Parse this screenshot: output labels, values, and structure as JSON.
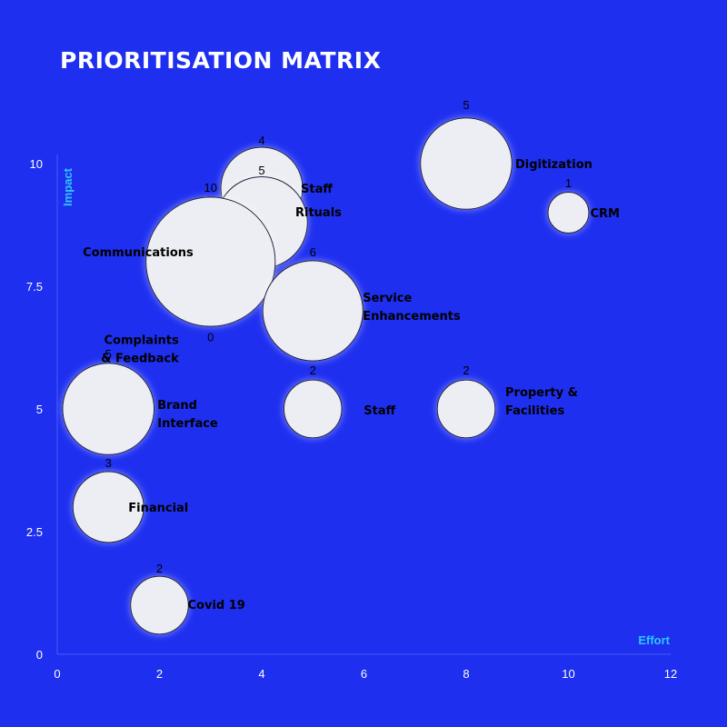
{
  "page": {
    "title": "PRIORITISATION MATRIX",
    "background": "#1e2ff0"
  },
  "chart_data": {
    "type": "scatter",
    "title": "PRIORITISATION MATRIX",
    "xlabel": "Effort",
    "ylabel": "Impact",
    "xlim": [
      0,
      12
    ],
    "ylim": [
      0,
      10
    ],
    "x_ticks": [
      0,
      2,
      4,
      6,
      8,
      10,
      12
    ],
    "y_ticks": [
      {
        "value": 0,
        "label": "0"
      },
      {
        "value": 2.5,
        "label": "2.5"
      },
      {
        "value": 5,
        "label": "5"
      },
      {
        "value": 7.5,
        "label": "7.5"
      },
      {
        "value": 10,
        "label": "10"
      }
    ],
    "grid": false,
    "colors": {
      "bubble_fill": "#eceef4",
      "bubble_stroke": "#1a1a3a",
      "axis_title": "#2ec6ff",
      "tick_label": "#ffffff"
    },
    "points": [
      {
        "name": "Digitization",
        "x": 8,
        "y": 10,
        "size": 5
      },
      {
        "name": "CRM",
        "x": 10,
        "y": 9,
        "size": 1
      },
      {
        "name": "Staff",
        "x": 4,
        "y": 9.5,
        "size": 4
      },
      {
        "name": "Rituals",
        "x": 4,
        "y": 8.8,
        "size": 5
      },
      {
        "name": "Communications",
        "x": 3,
        "y": 8,
        "size": 10
      },
      {
        "name": "Service Enhancements",
        "x": 5,
        "y": 7,
        "size": 6
      },
      {
        "name": "Complaints & Feedback",
        "x": 3,
        "y": 6.6,
        "size": 0
      },
      {
        "name": "Brand Interface",
        "x": 1,
        "y": 5,
        "size": 5
      },
      {
        "name": "Staff",
        "x": 5,
        "y": 5,
        "size": 2
      },
      {
        "name": "Property & Facilities",
        "x": 8,
        "y": 5,
        "size": 2
      },
      {
        "name": "Financial",
        "x": 1,
        "y": 3,
        "size": 3
      },
      {
        "name": "Covid 19",
        "x": 2,
        "y": 1,
        "size": 2
      }
    ]
  }
}
